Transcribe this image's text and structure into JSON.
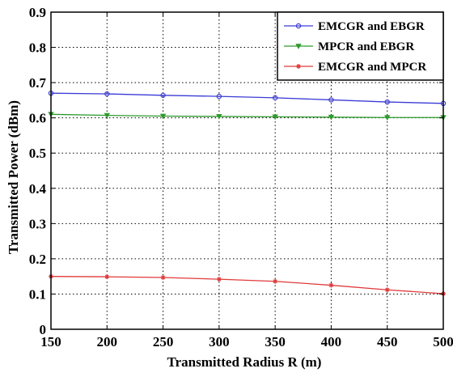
{
  "chart_data": {
    "type": "line",
    "xlabel": "Transmitted Radius R (m)",
    "ylabel": "Transmitted Power (dBm)",
    "x": [
      150,
      200,
      250,
      300,
      350,
      400,
      450,
      500
    ],
    "xlim": [
      150,
      500
    ],
    "ylim": [
      0,
      0.9
    ],
    "xticks": [
      "150",
      "200",
      "250",
      "300",
      "350",
      "400",
      "450",
      "500"
    ],
    "yticks": [
      "0",
      "0.1",
      "0.2",
      "0.3",
      "0.4",
      "0.5",
      "0.6",
      "0.7",
      "0.8",
      "0.9"
    ],
    "grid": true,
    "legend_position": "top-right",
    "series": [
      {
        "name": "EMCGR and EBGR",
        "color": "#3b3bd6",
        "marker": "circle",
        "values": [
          0.67,
          0.668,
          0.664,
          0.661,
          0.657,
          0.651,
          0.645,
          0.641
        ]
      },
      {
        "name": "MPCR and EBGR",
        "color": "#2e9a2e",
        "marker": "triangle-down",
        "values": [
          0.61,
          0.607,
          0.605,
          0.604,
          0.603,
          0.602,
          0.601,
          0.601
        ]
      },
      {
        "name": "EMCGR and MPCR",
        "color": "#e03a3a",
        "marker": "star",
        "values": [
          0.15,
          0.149,
          0.147,
          0.142,
          0.136,
          0.125,
          0.112,
          0.101
        ]
      }
    ]
  }
}
